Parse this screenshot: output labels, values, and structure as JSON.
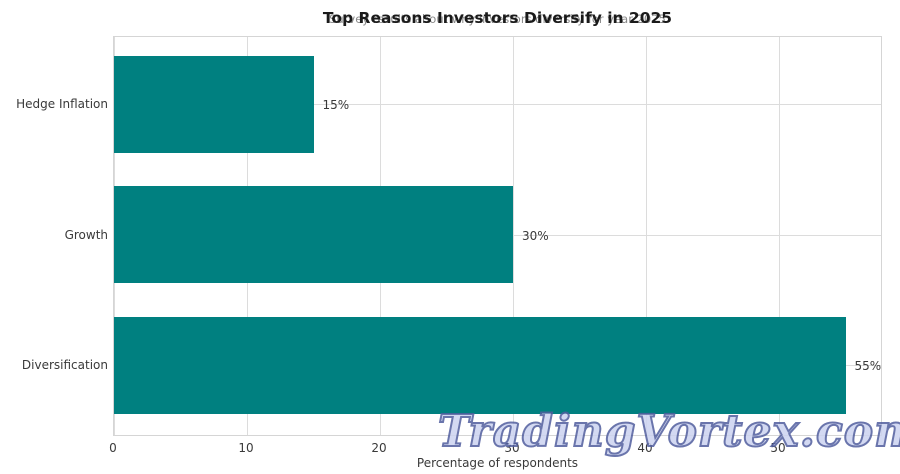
{
  "title": "Top Reasons Investors Diversify in 2025",
  "subtitle": "Survey results about why investors diversify for year 2025",
  "watermark_text": "TradingVortex.com",
  "xaxis": {
    "label": "Percentage of respondents",
    "ticks": [
      "0",
      "10",
      "20",
      "30",
      "40",
      "50"
    ]
  },
  "colors": {
    "bar": "#008080",
    "grid": "#dcdcdc",
    "spine": "#d5d5d5",
    "title_text": "#1a1a1a",
    "subtitle_text": "#8a8a8a",
    "tick_text": "#3a3a3a",
    "watermark_fill": "#ccd3f0",
    "watermark_outline": "#515e9e"
  },
  "chart_data": {
    "type": "bar",
    "orientation": "horizontal",
    "title": "Top Reasons Investors Diversify in 2025",
    "xlabel": "Percentage of respondents",
    "ylabel": "",
    "categories": [
      "Hedge Inflation",
      "Growth",
      "Diversification"
    ],
    "values": [
      15,
      30,
      55
    ],
    "value_labels": [
      "15%",
      "30%",
      "55%"
    ],
    "xlim": [
      0,
      57.8
    ],
    "xticks": [
      0,
      10,
      20,
      30,
      40,
      50
    ],
    "grid": true,
    "legend": false,
    "bar_color": "#008080"
  }
}
